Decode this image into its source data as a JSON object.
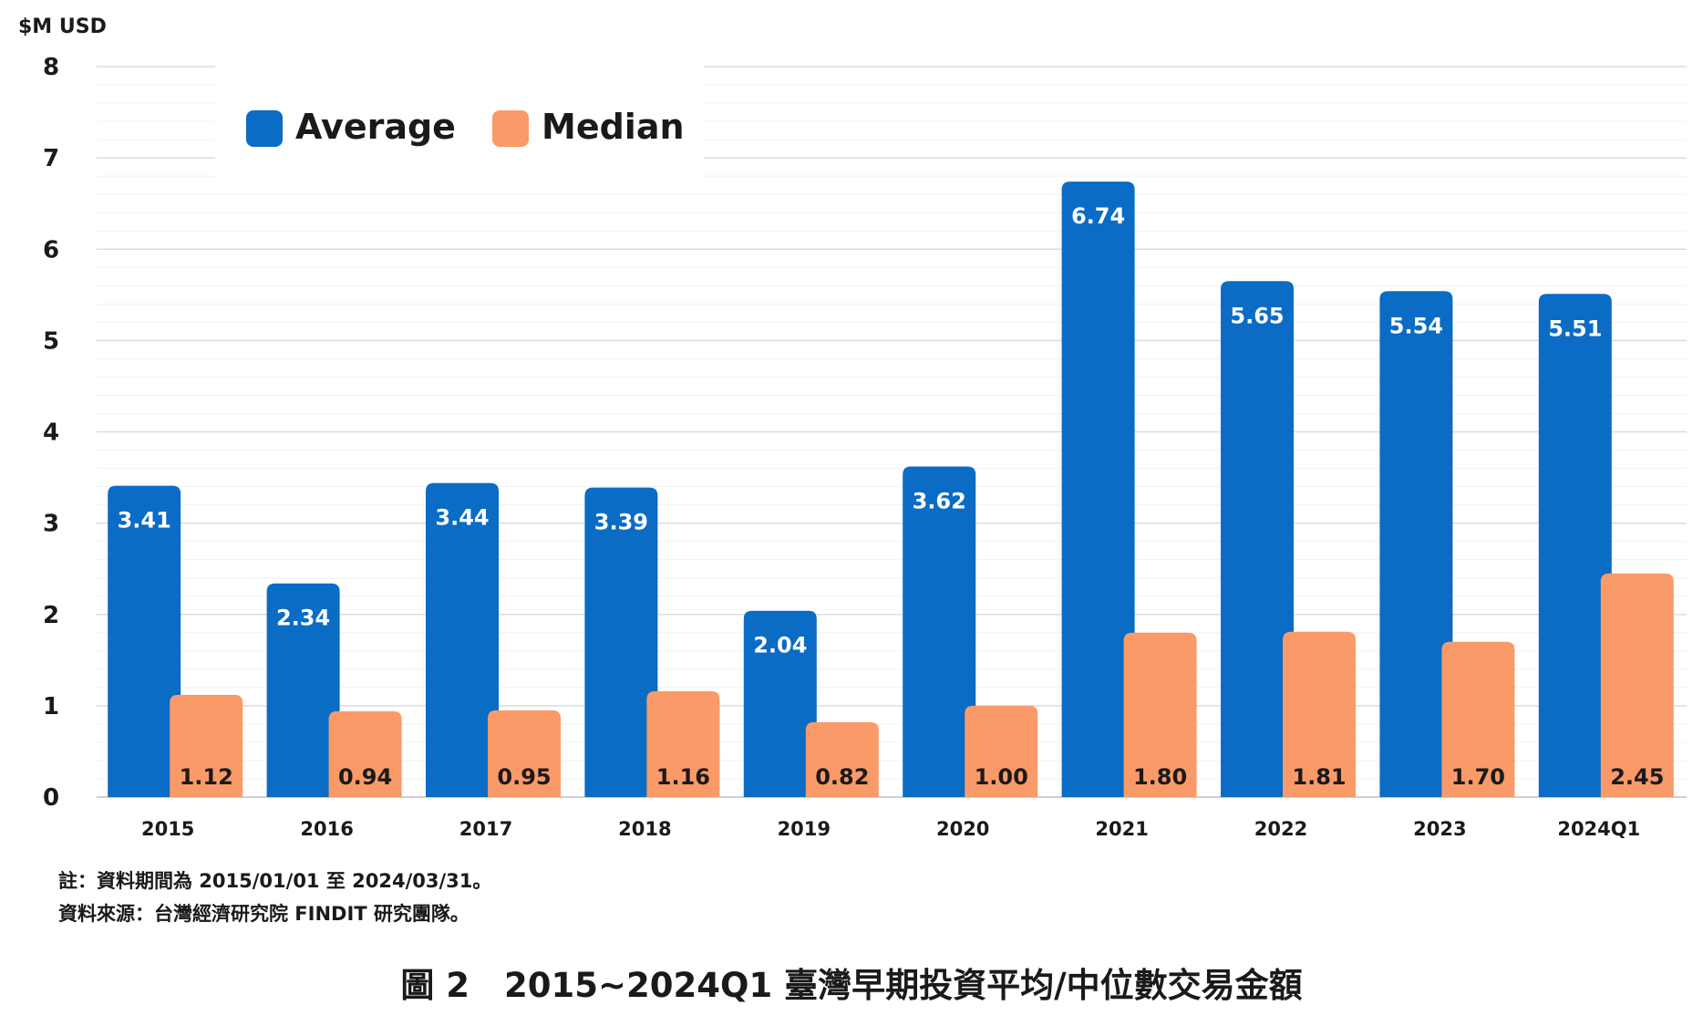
{
  "chart_data": {
    "type": "bar",
    "title": "",
    "ylabel": "$M USD",
    "xlabel": "",
    "ylim": [
      0,
      8
    ],
    "yticks": [
      "0",
      "1",
      "2",
      "3",
      "4",
      "5",
      "6",
      "7",
      "8"
    ],
    "grid": true,
    "legend_position": "top-left",
    "categories": [
      "2015",
      "2016",
      "2017",
      "2018",
      "2019",
      "2020",
      "2021",
      "2022",
      "2023",
      "2024Q1"
    ],
    "series": [
      {
        "name": "Average",
        "color": "#0A6CC4",
        "values": [
          3.41,
          2.34,
          3.44,
          3.39,
          2.04,
          3.62,
          6.74,
          5.65,
          5.54,
          5.51
        ],
        "labels": [
          "3.41",
          "2.34",
          "3.44",
          "3.39",
          "2.04",
          "3.62",
          "6.74",
          "5.65",
          "5.54",
          "5.51"
        ]
      },
      {
        "name": "Median",
        "color": "#FA9A68",
        "values": [
          1.12,
          0.94,
          0.95,
          1.16,
          0.82,
          1.0,
          1.8,
          1.81,
          1.7,
          2.45
        ],
        "labels": [
          "1.12",
          "0.94",
          "0.95",
          "1.16",
          "0.82",
          "1.00",
          "1.80",
          "1.81",
          "1.70",
          "2.45"
        ]
      }
    ]
  },
  "notes": {
    "period": "註：資料期間為 2015/01/01 至 2024/03/31。",
    "source": "資料來源：台灣經濟研究院 FINDIT 研究團隊。"
  },
  "caption": {
    "figure_number": "圖 2",
    "title": "2015~2024Q1 臺灣早期投資平均/中位數交易金額"
  }
}
